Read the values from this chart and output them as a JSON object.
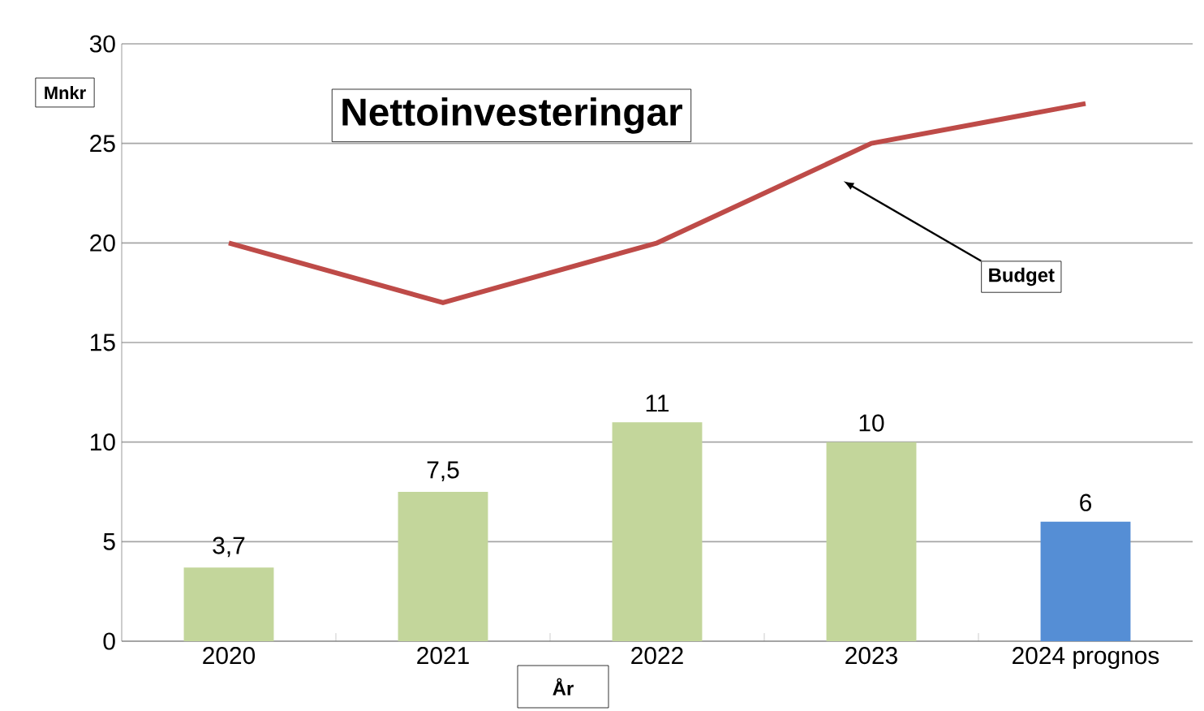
{
  "chart_data": {
    "type": "bar",
    "title": "Nettoinvesteringar",
    "xlabel": "År",
    "ylabel": "Mnkr",
    "categories": [
      "2020",
      "2021",
      "2022",
      "2023",
      "2024 prognos"
    ],
    "series": [
      {
        "colors": [
          "#c3d69b",
          "#c3d69b",
          "#c3d69b",
          "#c3d69b",
          "#558ed5"
        ],
        "values": [
          3.7,
          7.5,
          11,
          10,
          6
        ],
        "value_labels": [
          "3,7",
          "7,5",
          "11",
          "10",
          "6"
        ]
      },
      {
        "type": "line",
        "name": "Budget",
        "color": "#be4b48",
        "values": [
          20,
          17,
          20,
          25,
          27
        ]
      }
    ],
    "ylim": [
      0,
      30
    ],
    "yticks": [
      0,
      5,
      10,
      15,
      20,
      25,
      30
    ],
    "grid": "y"
  }
}
